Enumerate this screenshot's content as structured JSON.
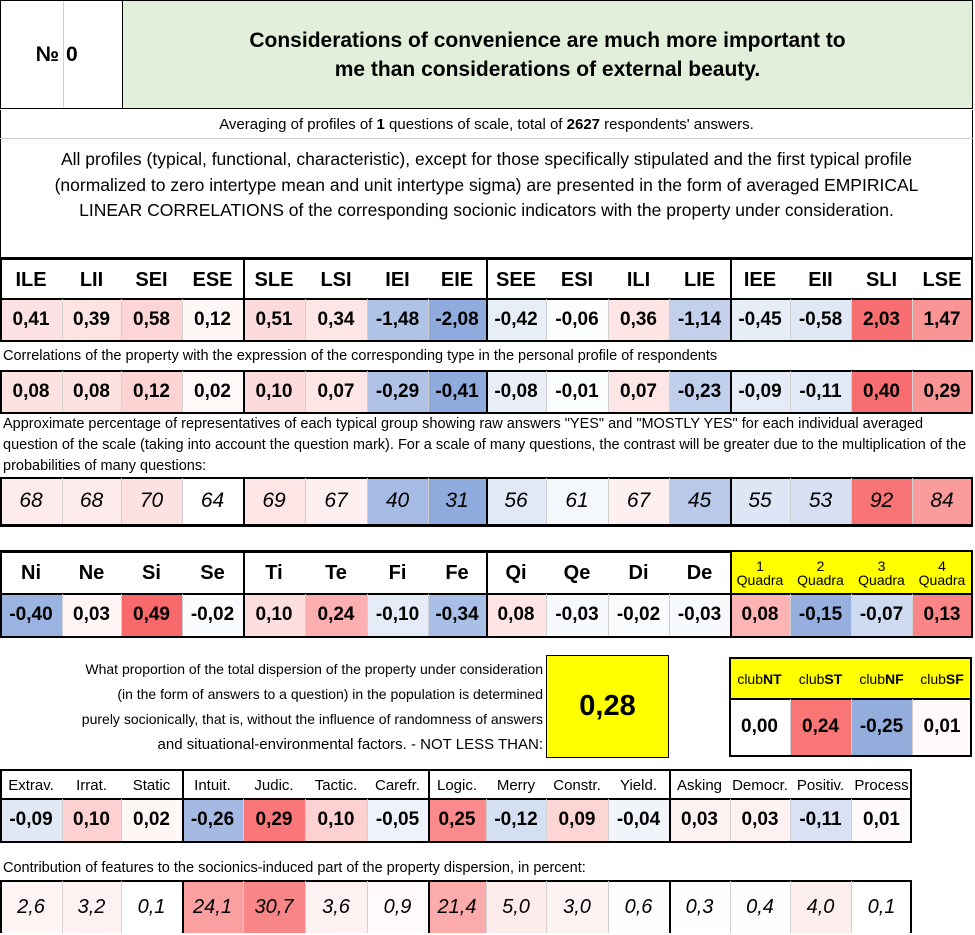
{
  "title": {
    "number_label": "№",
    "number": "0",
    "statement": "Considerations of convenience are much more important to me than considerations of external beauty."
  },
  "averaging": {
    "prefix": "Averaging of profiles of ",
    "questions": "1",
    "middle": " questions of scale, total of ",
    "respondents": "2627",
    "suffix": " respondents' answers."
  },
  "description": "All profiles (typical, functional, characteristic), except for those specifically stipulated and the first typical profile (normalized to zero intertype mean and unit intertype sigma) are presented in the form of averaged EMPIRICAL LINEAR CORRELATIONS of the corresponding socionic indicators with the property under consideration.",
  "types": {
    "headers": [
      "ILE",
      "LII",
      "SEI",
      "ESE",
      "SLE",
      "LSI",
      "IEI",
      "EIE",
      "SEE",
      "ESI",
      "ILI",
      "LIE",
      "IEE",
      "EII",
      "SLI",
      "LSE"
    ],
    "values": [
      "0,41",
      "0,39",
      "0,58",
      "0,12",
      "0,51",
      "0,34",
      "-1,48",
      "-2,08",
      "-0,42",
      "-0,06",
      "0,36",
      "-1,14",
      "-0,45",
      "-0,58",
      "2,03",
      "1,47"
    ],
    "correlation_note": "Correlations of the property with the expression of the corresponding type in the personal profile of respondents",
    "correlations": [
      "0,08",
      "0,08",
      "0,12",
      "0,02",
      "0,10",
      "0,07",
      "-0,29",
      "-0,41",
      "-0,08",
      "-0,01",
      "0,07",
      "-0,23",
      "-0,09",
      "-0,11",
      "0,40",
      "0,29"
    ],
    "percentage_note": "Approximate percentage of representatives of each typical group showing raw answers \"YES\" and \"MOSTLY YES\" for each individual averaged question of the scale (taking into account the question mark). For a scale of many questions, the contrast will be greater due to the multiplication of the probabilities of many questions:",
    "percentages": [
      "68",
      "68",
      "70",
      "64",
      "69",
      "67",
      "40",
      "31",
      "56",
      "61",
      "67",
      "45",
      "55",
      "53",
      "92",
      "84"
    ]
  },
  "functions": {
    "headers": [
      "Ni",
      "Ne",
      "Si",
      "Se",
      "Ti",
      "Te",
      "Fi",
      "Fe",
      "Qi",
      "Qe",
      "Di",
      "De"
    ],
    "values": [
      "-0,40",
      "0,03",
      "0,49",
      "-0,02",
      "0,10",
      "0,24",
      "-0,10",
      "-0,34",
      "0,08",
      "-0,03",
      "-0,02",
      "-0,03"
    ]
  },
  "quadras": {
    "headers": [
      {
        "num": "1",
        "label": "Quadra"
      },
      {
        "num": "2",
        "label": "Quadra"
      },
      {
        "num": "3",
        "label": "Quadra"
      },
      {
        "num": "4",
        "label": "Quadra"
      }
    ],
    "values": [
      "0,08",
      "-0,15",
      "-0,07",
      "0,13"
    ]
  },
  "dispersion": {
    "text_lines": [
      "What proportion of the total dispersion of the property under consideration",
      "(in the form of answers to a question) in the population is determined",
      "purely socionically, that is, without the influence of randomness of answers",
      "and situational-environmental factors. - NOT LESS THAN:"
    ],
    "value": "0,28"
  },
  "clubs": {
    "headers": [
      {
        "prefix": "club",
        "suffix": "NT"
      },
      {
        "prefix": "club",
        "suffix": "ST"
      },
      {
        "prefix": "club",
        "suffix": "NF"
      },
      {
        "prefix": "club",
        "suffix": "SF"
      }
    ],
    "values": [
      "0,00",
      "0,24",
      "-0,25",
      "0,01"
    ]
  },
  "traits": {
    "headers": [
      "Extrav.",
      "Irrat.",
      "Static",
      "Intuit.",
      "Judic.",
      "Tactic.",
      "Carefr.",
      "Logic.",
      "Merry",
      "Constr.",
      "Yield.",
      "Asking",
      "Democr.",
      "Positiv.",
      "Process"
    ],
    "values": [
      "-0,09",
      "0,10",
      "0,02",
      "-0,26",
      "0,29",
      "0,10",
      "-0,05",
      "0,25",
      "-0,12",
      "0,09",
      "-0,04",
      "0,03",
      "0,03",
      "-0,11",
      "0,01"
    ],
    "contribution_note": "Contribution of features to the socionics-induced part of the property dispersion, in percent:",
    "contributions": [
      "2,6",
      "3,2",
      "0,1",
      "24,1",
      "30,7",
      "3,6",
      "0,9",
      "21,4",
      "5,0",
      "3,0",
      "0,6",
      "0,3",
      "0,4",
      "4,0",
      "0,1"
    ]
  },
  "colors": {
    "title_bg": "#e2efda",
    "yellow": "#ffff00",
    "strong_red": "#f8696b",
    "strong_blue": "#8faadc"
  }
}
